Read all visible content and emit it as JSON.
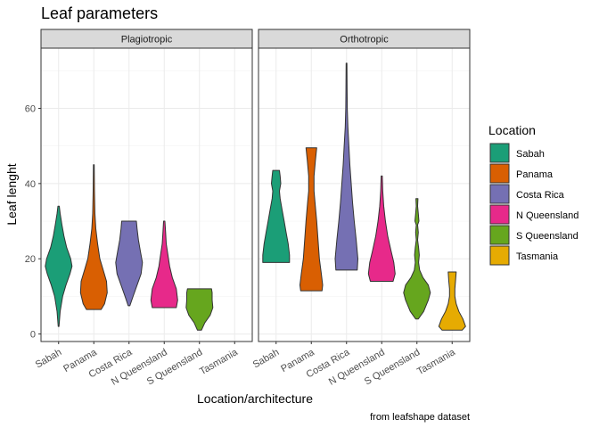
{
  "chart_data": {
    "type": "violin",
    "title": "Leaf parameters",
    "xlabel": "Location/architecture",
    "ylabel": "Leaf lenght",
    "caption": "from leafshape dataset",
    "ylim": [
      -2,
      76
    ],
    "yticks": [
      0,
      20,
      40,
      60
    ],
    "categories": [
      "Sabah",
      "Panama",
      "Costa Rica",
      "N Queensland",
      "S Queensland",
      "Tasmania"
    ],
    "grid": true,
    "legend": {
      "title": "Location",
      "position": "right",
      "entries": [
        "Sabah",
        "Panama",
        "Costa Rica",
        "N Queensland",
        "S Queensland",
        "Tasmania"
      ]
    },
    "colors": {
      "Sabah": "#1b9e77",
      "Panama": "#d95f02",
      "Costa Rica": "#7570b3",
      "N Queensland": "#e7298a",
      "S Queensland": "#66a61e",
      "Tasmania": "#e6ab02"
    },
    "panels": [
      {
        "strip": "Plagiotropic",
        "violins": [
          {
            "category": "Sabah",
            "profile": [
              [
                2,
                0.03
              ],
              [
                6,
                0.12
              ],
              [
                10,
                0.3
              ],
              [
                13,
                0.55
              ],
              [
                16,
                0.85
              ],
              [
                18,
                1.0
              ],
              [
                20,
                0.9
              ],
              [
                23,
                0.6
              ],
              [
                26,
                0.4
              ],
              [
                29,
                0.25
              ],
              [
                32,
                0.12
              ],
              [
                34,
                0.05
              ]
            ]
          },
          {
            "category": "Panama",
            "profile": [
              [
                6.5,
                0.55
              ],
              [
                8,
                0.8
              ],
              [
                11,
                1.0
              ],
              [
                14,
                0.95
              ],
              [
                17,
                0.7
              ],
              [
                20,
                0.45
              ],
              [
                24,
                0.28
              ],
              [
                28,
                0.15
              ],
              [
                32,
                0.08
              ],
              [
                38,
                0.05
              ],
              [
                45,
                0.03
              ]
            ]
          },
          {
            "category": "Costa Rica",
            "profile": [
              [
                7.5,
                0.06
              ],
              [
                10,
                0.3
              ],
              [
                13,
                0.6
              ],
              [
                16,
                0.9
              ],
              [
                19,
                1.0
              ],
              [
                22,
                0.85
              ],
              [
                25,
                0.7
              ],
              [
                28,
                0.6
              ],
              [
                30,
                0.55
              ]
            ]
          },
          {
            "category": "N Queensland",
            "profile": [
              [
                7,
                0.9
              ],
              [
                9,
                1.0
              ],
              [
                12,
                0.9
              ],
              [
                15,
                0.6
              ],
              [
                18,
                0.4
              ],
              [
                21,
                0.28
              ],
              [
                24,
                0.15
              ],
              [
                27,
                0.1
              ],
              [
                30,
                0.05
              ]
            ]
          },
          {
            "category": "S Queensland",
            "profile": [
              [
                1,
                0.15
              ],
              [
                3,
                0.4
              ],
              [
                5,
                0.8
              ],
              [
                7,
                1.0
              ],
              [
                9,
                0.95
              ],
              [
                11,
                0.95
              ],
              [
                12,
                0.9
              ]
            ]
          }
        ]
      },
      {
        "strip": "Orthotropic",
        "violins": [
          {
            "category": "Sabah",
            "profile": [
              [
                19,
                1.0
              ],
              [
                21,
                1.0
              ],
              [
                24,
                0.9
              ],
              [
                27,
                0.75
              ],
              [
                30,
                0.6
              ],
              [
                33,
                0.45
              ],
              [
                36,
                0.3
              ],
              [
                38,
                0.25
              ],
              [
                40,
                0.35
              ],
              [
                42,
                0.3
              ],
              [
                43.5,
                0.25
              ]
            ]
          },
          {
            "category": "Panama",
            "profile": [
              [
                11.5,
                0.8
              ],
              [
                13,
                0.85
              ],
              [
                16,
                0.75
              ],
              [
                20,
                0.6
              ],
              [
                25,
                0.5
              ],
              [
                30,
                0.4
              ],
              [
                35,
                0.28
              ],
              [
                38,
                0.2
              ],
              [
                42,
                0.2
              ],
              [
                46,
                0.3
              ],
              [
                49.5,
                0.4
              ]
            ]
          },
          {
            "category": "Costa Rica",
            "profile": [
              [
                17,
                0.8
              ],
              [
                20,
                0.85
              ],
              [
                25,
                0.72
              ],
              [
                30,
                0.58
              ],
              [
                35,
                0.45
              ],
              [
                40,
                0.35
              ],
              [
                45,
                0.25
              ],
              [
                50,
                0.18
              ],
              [
                55,
                0.1
              ],
              [
                60,
                0.06
              ],
              [
                65,
                0.04
              ],
              [
                72,
                0.03
              ]
            ]
          },
          {
            "category": "N Queensland",
            "profile": [
              [
                14,
                0.85
              ],
              [
                16,
                1.0
              ],
              [
                19,
                0.9
              ],
              [
                22,
                0.7
              ],
              [
                26,
                0.45
              ],
              [
                30,
                0.28
              ],
              [
                34,
                0.15
              ],
              [
                38,
                0.08
              ],
              [
                42,
                0.04
              ]
            ]
          },
          {
            "category": "S Queensland",
            "profile": [
              [
                4,
                0.1
              ],
              [
                6,
                0.5
              ],
              [
                9,
                0.85
              ],
              [
                11,
                1.0
              ],
              [
                13,
                0.85
              ],
              [
                15,
                0.45
              ],
              [
                17,
                0.2
              ],
              [
                19,
                0.12
              ],
              [
                21,
                0.18
              ],
              [
                23,
                0.12
              ],
              [
                25,
                0.05
              ],
              [
                27,
                0.1
              ],
              [
                29,
                0.05
              ],
              [
                30,
                0.15
              ],
              [
                32,
                0.1
              ],
              [
                34,
                0.05
              ],
              [
                36,
                0.08
              ]
            ]
          },
          {
            "category": "Tasmania",
            "profile": [
              [
                1,
                0.75
              ],
              [
                2,
                1.0
              ],
              [
                4,
                0.8
              ],
              [
                6,
                0.5
              ],
              [
                8,
                0.3
              ],
              [
                10,
                0.2
              ],
              [
                12,
                0.2
              ],
              [
                14,
                0.25
              ],
              [
                16.5,
                0.3
              ]
            ]
          }
        ]
      }
    ]
  }
}
